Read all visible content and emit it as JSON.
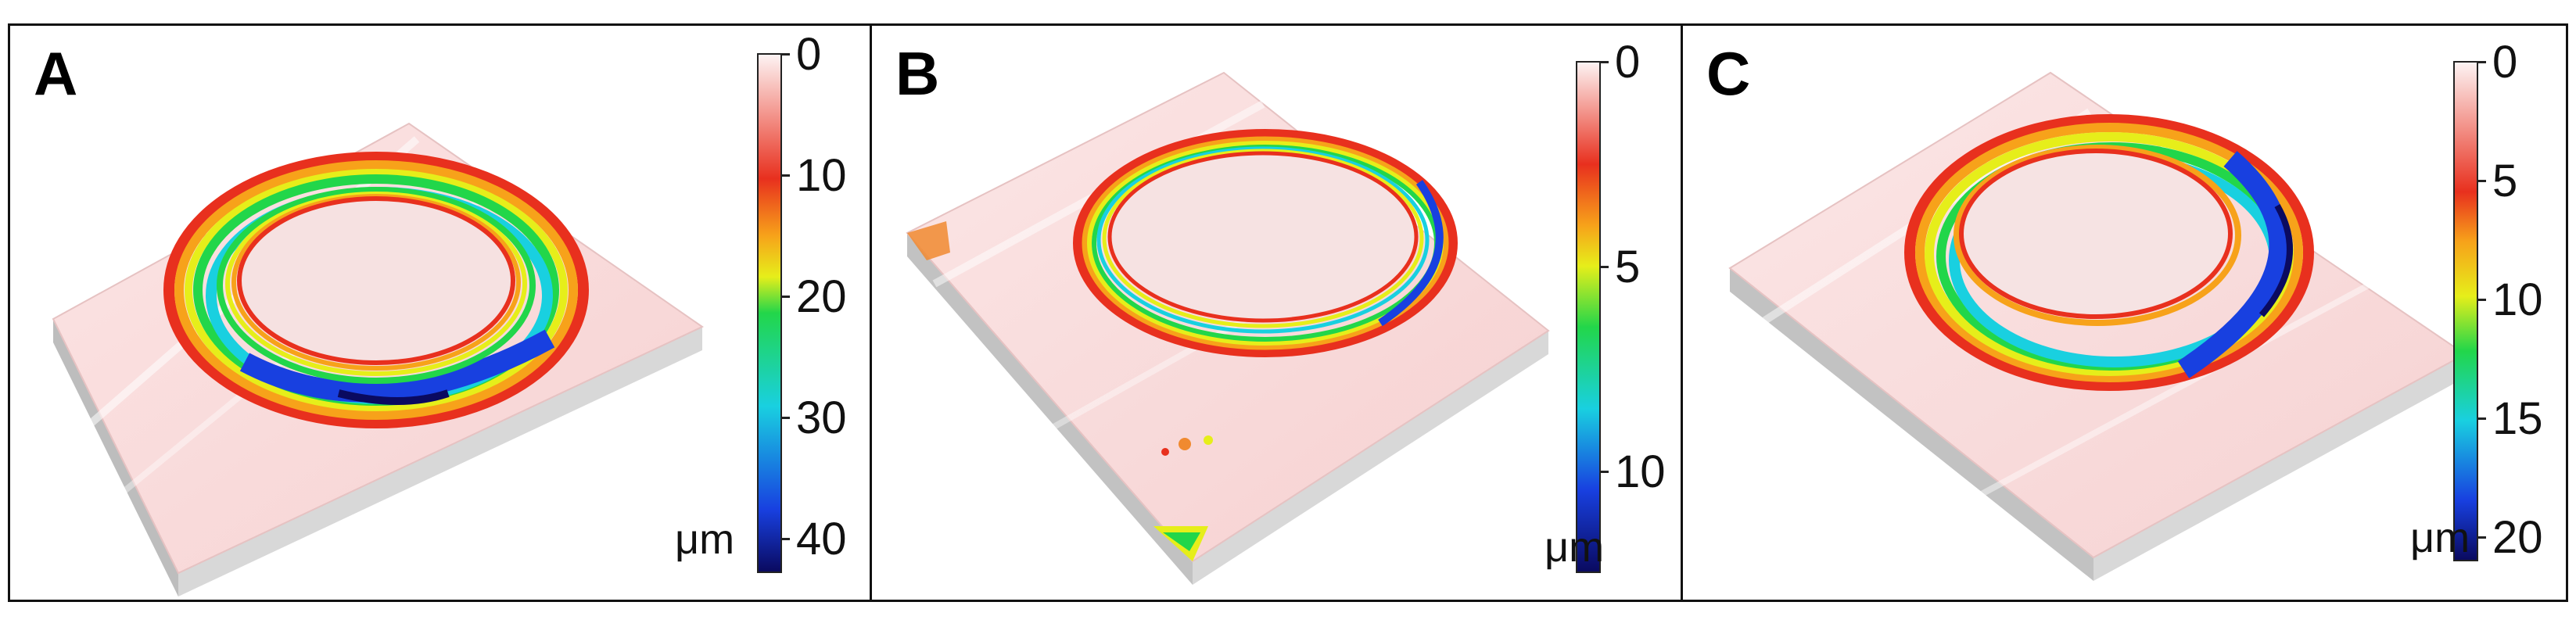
{
  "figure": {
    "panels": [
      {
        "id": "a",
        "label": "A",
        "colorbar": {
          "unit": "μm",
          "min": 0,
          "max": 43,
          "tick_values": [
            0,
            10,
            20,
            30,
            40
          ],
          "tick_labels": [
            "0",
            "10",
            "20",
            "30",
            "40"
          ]
        }
      },
      {
        "id": "b",
        "label": "B",
        "colorbar": {
          "unit": "μm",
          "min": 0,
          "max": 12.5,
          "tick_values": [
            0,
            5,
            10
          ],
          "tick_labels": [
            "0",
            "5",
            "10"
          ]
        }
      },
      {
        "id": "c",
        "label": "C",
        "colorbar": {
          "unit": "μm",
          "min": 0,
          "max": 21,
          "tick_values": [
            0,
            5,
            10,
            15,
            20
          ],
          "tick_labels": [
            "0",
            "5",
            "10",
            "15",
            "20"
          ]
        }
      }
    ],
    "colormap": [
      "#fdf3f3",
      "#e8301e",
      "#f7a21a",
      "#e6ee1a",
      "#22d64a",
      "#19d0e0",
      "#1840e0",
      "#0a0a60"
    ]
  }
}
